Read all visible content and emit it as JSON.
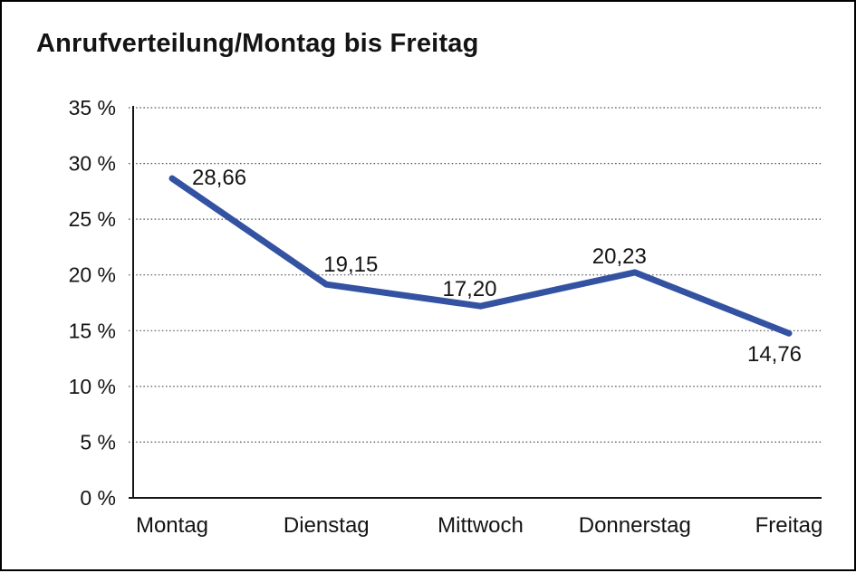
{
  "page": {
    "background": "#ffffff",
    "frame_border_color": "#000000"
  },
  "header": {
    "title": "Anrufverteilung/Montag bis Freitag"
  },
  "chart_data": {
    "type": "line",
    "title": "Anrufverteilung/Montag bis Freitag",
    "categories": [
      "Montag",
      "Dienstag",
      "Mittwoch",
      "Donnerstag",
      "Freitag"
    ],
    "values": [
      28.66,
      19.15,
      17.2,
      20.23,
      14.76
    ],
    "data_labels": [
      "28,66",
      "19,15",
      "17,20",
      "20,23",
      "14,76"
    ],
    "xlabel": "",
    "ylabel": "",
    "ylim": [
      0,
      35
    ],
    "y_ticks": [
      {
        "v": 0,
        "label": "0 %"
      },
      {
        "v": 5,
        "label": "5 %"
      },
      {
        "v": 10,
        "label": "10 %"
      },
      {
        "v": 15,
        "label": "15 %"
      },
      {
        "v": 20,
        "label": "20 %"
      },
      {
        "v": 25,
        "label": "25 %"
      },
      {
        "v": 30,
        "label": "30 %"
      },
      {
        "v": 35,
        "label": "35 %"
      }
    ],
    "grid": "dotted-horizontal",
    "legend": "none",
    "colors": {
      "series_line": "#3352A2",
      "axis": "#141414",
      "gridline": "#4d4d4d",
      "text": "#141414"
    }
  }
}
